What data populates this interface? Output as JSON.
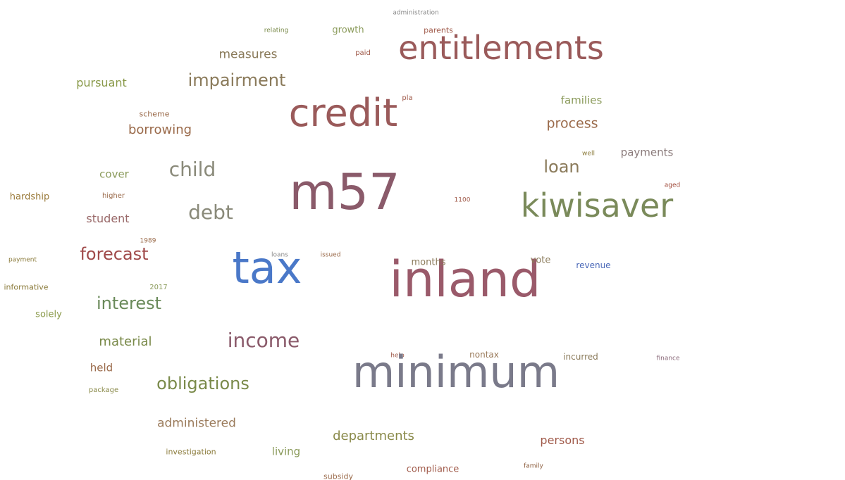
{
  "cloud": {
    "words": [
      {
        "text": "administration",
        "color": "#8a8a8a"
      },
      {
        "text": "relating",
        "color": "#7a8a4a"
      },
      {
        "text": "growth",
        "color": "#8a9a5a"
      },
      {
        "text": "parents",
        "color": "#a05a4a"
      },
      {
        "text": "paid",
        "color": "#a05a4a"
      },
      {
        "text": "entitlements",
        "color": "#9a5a5a"
      },
      {
        "text": "measures",
        "color": "#8a7a5a"
      },
      {
        "text": "pursuant",
        "color": "#8a9a4a"
      },
      {
        "text": "impairment",
        "color": "#8a7a5a"
      },
      {
        "text": "credit",
        "color": "#9a5a5a"
      },
      {
        "text": "pla",
        "color": "#a05a4a"
      },
      {
        "text": "families",
        "color": "#8a9a5a"
      },
      {
        "text": "scheme",
        "color": "#9a6a4a"
      },
      {
        "text": "borrowing",
        "color": "#9a6a4a"
      },
      {
        "text": "process",
        "color": "#9a6a4a"
      },
      {
        "text": "child",
        "color": "#8a8a7a"
      },
      {
        "text": "payments",
        "color": "#8a7a7a"
      },
      {
        "text": "well",
        "color": "#8a7a3a"
      },
      {
        "text": "loan",
        "color": "#8a7a5a"
      },
      {
        "text": "cover",
        "color": "#8a9a5a"
      },
      {
        "text": "m57",
        "color": "#8a5a6a"
      },
      {
        "text": "kiwisaver",
        "color": "#7a8a5a"
      },
      {
        "text": "aged",
        "color": "#a04a3a"
      },
      {
        "text": "hardship",
        "color": "#9a7a3a"
      },
      {
        "text": "higher",
        "color": "#9a6a4a"
      },
      {
        "text": "1100",
        "color": "#a05a4a"
      },
      {
        "text": "debt",
        "color": "#8a8a7a"
      },
      {
        "text": "student",
        "color": "#9a6a6a"
      },
      {
        "text": "1989",
        "color": "#9a6a4a"
      },
      {
        "text": "forecast",
        "color": "#a04a4a"
      },
      {
        "text": "loans",
        "color": "#8a8a8a"
      },
      {
        "text": "issued",
        "color": "#9a6a4a"
      },
      {
        "text": "payment",
        "color": "#8a7a3a"
      },
      {
        "text": "tax",
        "color": "#4a78c8"
      },
      {
        "text": "inland",
        "color": "#9a5a6a"
      },
      {
        "text": "months",
        "color": "#8a7a5a"
      },
      {
        "text": "vote",
        "color": "#8a7a5a"
      },
      {
        "text": "revenue",
        "color": "#4a68b8"
      },
      {
        "text": "informative",
        "color": "#8a7a3a"
      },
      {
        "text": "2017",
        "color": "#8a9a5a"
      },
      {
        "text": "interest",
        "color": "#6a8a5a"
      },
      {
        "text": "solely",
        "color": "#8a9a4a"
      },
      {
        "text": "income",
        "color": "#8a5a6a"
      },
      {
        "text": "material",
        "color": "#7a8a4a"
      },
      {
        "text": "help",
        "color": "#a05a4a"
      },
      {
        "text": "nontax",
        "color": "#9a7a5a"
      },
      {
        "text": "incurred",
        "color": "#8a7a5a"
      },
      {
        "text": "finance",
        "color": "#8a6a7a"
      },
      {
        "text": "minimum",
        "color": "#7a7a8a"
      },
      {
        "text": "held",
        "color": "#9a6a4a"
      },
      {
        "text": "obligations",
        "color": "#7a8a4a"
      },
      {
        "text": "package",
        "color": "#8a8a4a"
      },
      {
        "text": "administered",
        "color": "#9a7a5a"
      },
      {
        "text": "departments",
        "color": "#8a8a4a"
      },
      {
        "text": "persons",
        "color": "#a05a4a"
      },
      {
        "text": "investigation",
        "color": "#8a7a3a"
      },
      {
        "text": "living",
        "color": "#8a9a5a"
      },
      {
        "text": "compliance",
        "color": "#a05a4a"
      },
      {
        "text": "family",
        "color": "#8a5a3a"
      },
      {
        "text": "subsidy",
        "color": "#9a6a4a"
      }
    ]
  }
}
